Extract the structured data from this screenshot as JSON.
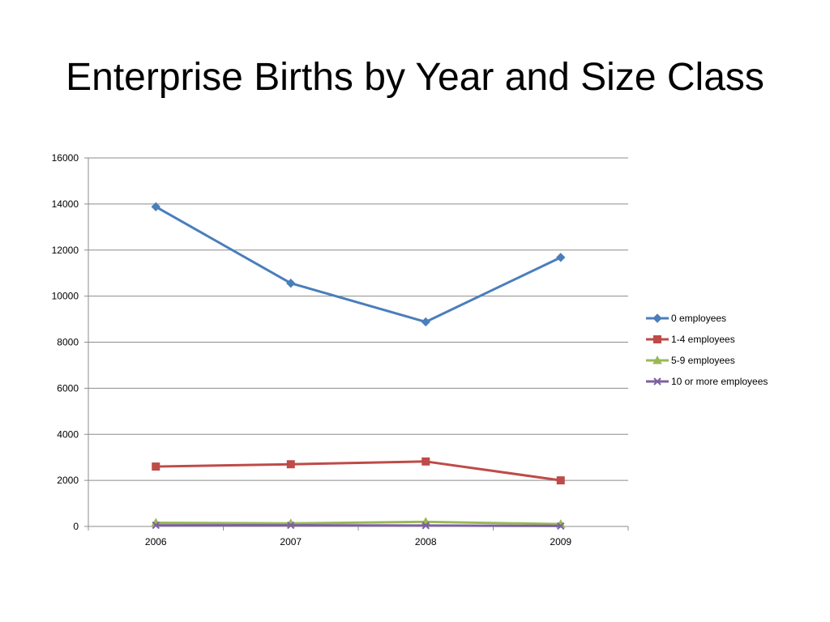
{
  "slide": {
    "title": "Enterprise Births by Year and Size Class"
  },
  "chart_data": {
    "type": "line",
    "title": "",
    "xlabel": "",
    "ylabel": "",
    "categories": [
      "2006",
      "2007",
      "2008",
      "2009"
    ],
    "ylim": [
      0,
      16000
    ],
    "yticks": [
      0,
      2000,
      4000,
      6000,
      8000,
      10000,
      12000,
      14000,
      16000
    ],
    "grid": true,
    "legend": "right",
    "series": [
      {
        "name": "0 employees",
        "values": [
          13880,
          10560,
          8880,
          11680
        ],
        "color": "#4a7ebb",
        "marker": "diamond"
      },
      {
        "name": "1-4 employees",
        "values": [
          2600,
          2700,
          2820,
          2000
        ],
        "color": "#be4b48",
        "marker": "square"
      },
      {
        "name": "5-9 employees",
        "values": [
          160,
          130,
          200,
          100
        ],
        "color": "#98b954",
        "marker": "triangle"
      },
      {
        "name": "10 or more employees",
        "values": [
          50,
          50,
          40,
          20
        ],
        "color": "#7d60a0",
        "marker": "x"
      }
    ]
  }
}
